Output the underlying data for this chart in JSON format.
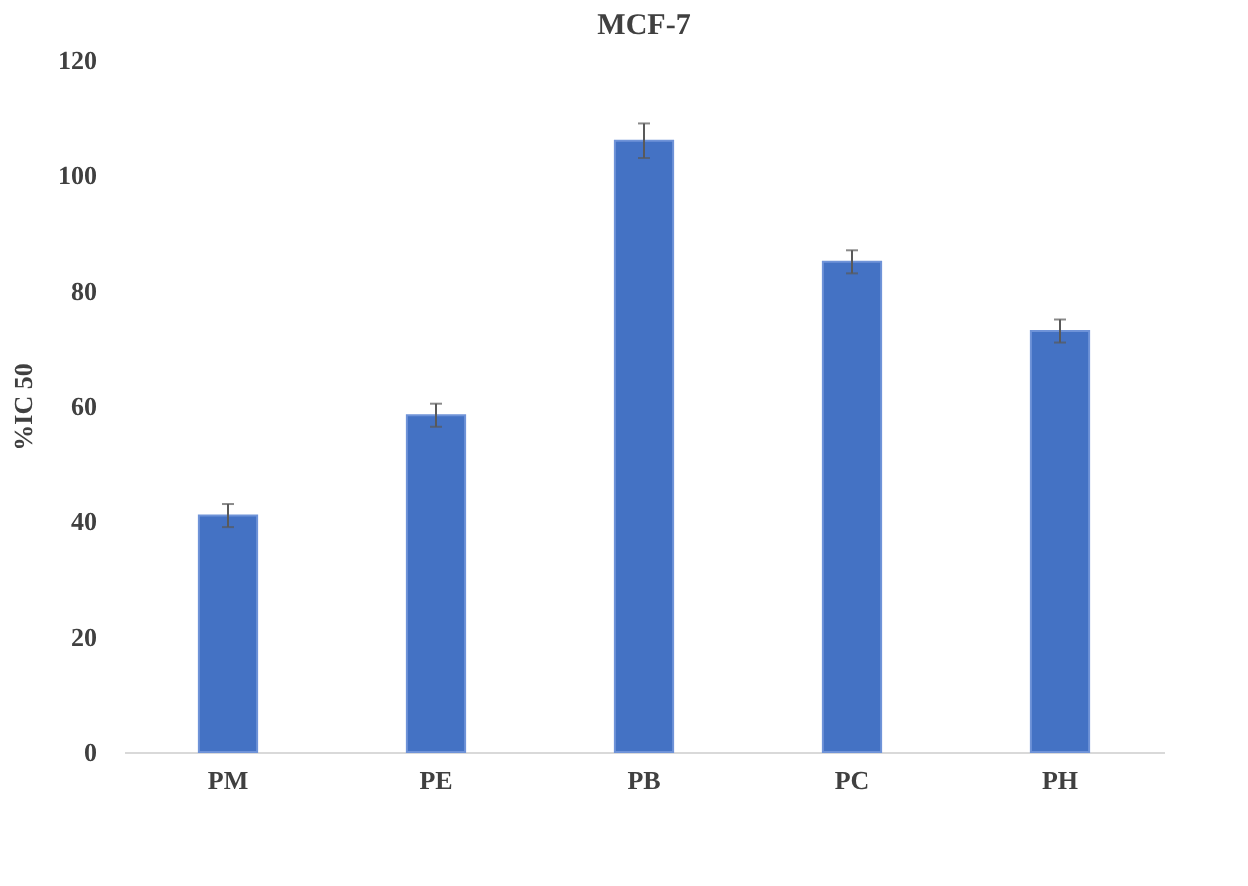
{
  "chart_data": {
    "type": "bar",
    "title": "MCF-7",
    "ylabel": "%IC 50",
    "categories": [
      "PM",
      "PE",
      "PB",
      "PC",
      "PH"
    ],
    "values": [
      41,
      58.4,
      106,
      85,
      73
    ],
    "errors": [
      2,
      2,
      3,
      2,
      2
    ],
    "color": "#4472c4",
    "ylim": [
      0,
      120
    ],
    "yticks": [
      0,
      20,
      40,
      60,
      80,
      100,
      120
    ],
    "grid": false
  }
}
